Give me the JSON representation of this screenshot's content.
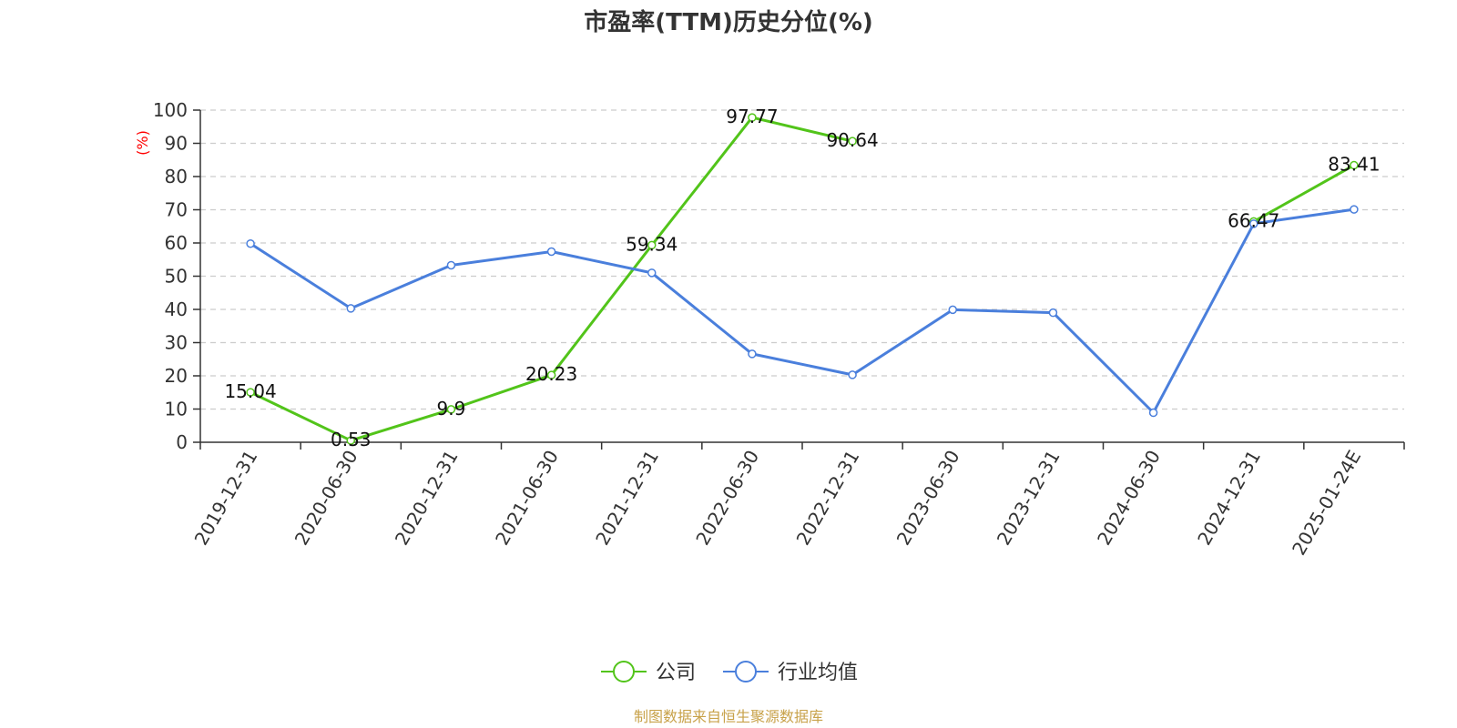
{
  "chart_data": {
    "type": "line",
    "title": "市盈率(TTM)历史分位(%)",
    "ylabel": "(%)",
    "ylim": [
      0,
      100
    ],
    "yticks": [
      0,
      10,
      20,
      30,
      40,
      50,
      60,
      70,
      80,
      90,
      100
    ],
    "grid": true,
    "legend_position": "bottom",
    "categories": [
      "2019-12-31",
      "2020-06-30",
      "2020-12-31",
      "2021-06-30",
      "2021-12-31",
      "2022-06-30",
      "2022-12-31",
      "2023-06-30",
      "2023-12-31",
      "2024-06-30",
      "2024-12-31",
      "2025-01-24E"
    ],
    "series": [
      {
        "name": "公司",
        "color": "#52c41a",
        "values": [
          15.04,
          0.53,
          9.9,
          20.23,
          59.34,
          97.77,
          90.64,
          null,
          null,
          null,
          66.47,
          83.41
        ],
        "labels": [
          "15.04",
          "0.53",
          "9.9",
          "20.23",
          "59.34",
          "97.77",
          "90.64",
          null,
          null,
          null,
          "66.47",
          "83.41"
        ]
      },
      {
        "name": "行业均值",
        "color": "#4a7fdc",
        "values": [
          59.8,
          40.3,
          53.3,
          57.4,
          51.0,
          26.6,
          20.3,
          39.9,
          39.0,
          8.9,
          65.8,
          70.1
        ]
      }
    ]
  },
  "source_note": "制图数据来自恒生聚源数据库",
  "colors": {
    "axis": "#333333",
    "grid": "#cccccc",
    "ylabel": "#ff0000",
    "source": "#c8a24a"
  }
}
